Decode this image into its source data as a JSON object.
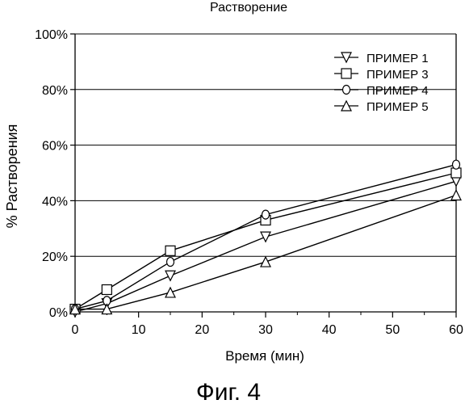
{
  "chart_data": {
    "type": "line",
    "title": "Растворение",
    "xlabel": "Время (мин)",
    "ylabel": "% Растворения",
    "caption": "Фиг. 4",
    "xlim": [
      0,
      60
    ],
    "ylim": [
      0,
      100
    ],
    "x_ticks": [
      "0",
      "10",
      "20",
      "30",
      "40",
      "50",
      "60"
    ],
    "y_ticks": [
      "0%",
      "20%",
      "40%",
      "60%",
      "80%",
      "100%"
    ],
    "grid": "horizontal",
    "legend_position": "top-right",
    "x": [
      0,
      5,
      15,
      30,
      60
    ],
    "series": [
      {
        "name": "ПРИМЕР 1",
        "marker": "triangle-down",
        "values": [
          0,
          3,
          13,
          27,
          47
        ]
      },
      {
        "name": "ПРИМЕР 3",
        "marker": "square",
        "values": [
          1,
          8,
          22,
          33,
          50
        ]
      },
      {
        "name": "ПРИМЕР 4",
        "marker": "circle",
        "values": [
          1,
          4,
          18,
          35,
          53
        ]
      },
      {
        "name": "ПРИМЕР 5",
        "marker": "triangle-up",
        "values": [
          1,
          1,
          7,
          18,
          42
        ]
      }
    ]
  }
}
